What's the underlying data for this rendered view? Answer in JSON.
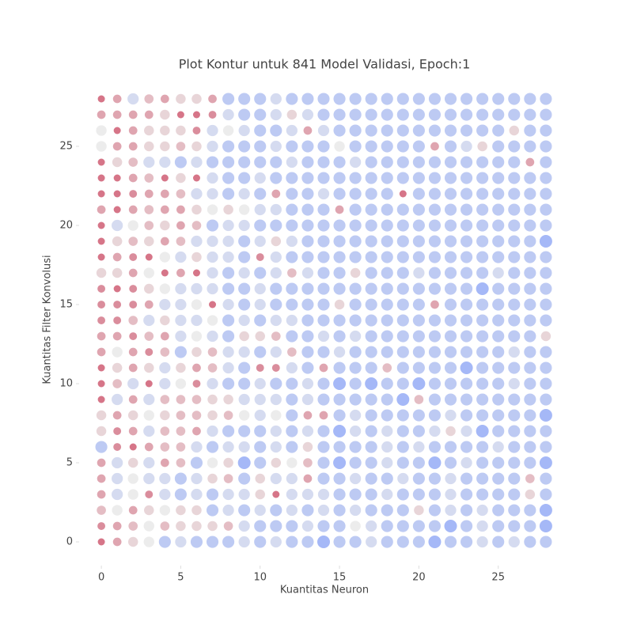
{
  "chart_data": {
    "type": "dot-grid",
    "title": "Plot Kontur untuk 841 Model Validasi, Epoch:1",
    "x_label": "Kuantitas Neuron",
    "y_label": "Kuantitas Filter Konvolusi",
    "x": [
      0,
      1,
      2,
      3,
      4,
      5,
      6,
      7,
      8,
      9,
      10,
      11,
      12,
      13,
      14,
      15,
      16,
      17,
      18,
      19,
      20,
      21,
      22,
      23,
      24,
      25,
      26,
      27,
      28
    ],
    "y": [
      0,
      1,
      2,
      3,
      4,
      5,
      6,
      7,
      8,
      9,
      10,
      11,
      12,
      13,
      14,
      15,
      16,
      17,
      18,
      19,
      20,
      21,
      22,
      23,
      24,
      25,
      26,
      27,
      28
    ],
    "xlim": [
      -1.4,
      29.5
    ],
    "ylim": [
      -1.5,
      29.5
    ],
    "xticks": [
      0,
      5,
      10,
      15,
      20,
      25
    ],
    "yticks": [
      0,
      5,
      10,
      15,
      20,
      25
    ],
    "color_stops": [
      {
        "value": 0,
        "color": "#b40426"
      },
      {
        "value": 5,
        "color": "#dddddd"
      },
      {
        "value": 8,
        "color": "#5b7ef0"
      }
    ],
    "opacity": 0.55,
    "values": [
      [
        0,
        2,
        4,
        5,
        7,
        6,
        7,
        7,
        7,
        6,
        7,
        6,
        7,
        7,
        8,
        7,
        7,
        6,
        7,
        7,
        7,
        8,
        7,
        7,
        6,
        7,
        6,
        7,
        7
      ],
      [
        1,
        2,
        3,
        5,
        3,
        4,
        4,
        4,
        3,
        6,
        7,
        7,
        7,
        6,
        7,
        7,
        5,
        6,
        7,
        7,
        7,
        7,
        8,
        7,
        6,
        7,
        7,
        7,
        8
      ],
      [
        3,
        5,
        2,
        4,
        5,
        4,
        4,
        7,
        6,
        7,
        6,
        7,
        6,
        7,
        6,
        7,
        6,
        7,
        7,
        7,
        4,
        7,
        6,
        7,
        6,
        7,
        7,
        7,
        8
      ],
      [
        2,
        6,
        5,
        1,
        6,
        7,
        6,
        7,
        6,
        6,
        4,
        0,
        6,
        6,
        6,
        7,
        7,
        7,
        6,
        7,
        7,
        7,
        6,
        7,
        7,
        7,
        7,
        4,
        7
      ],
      [
        2,
        6,
        5,
        6,
        6,
        7,
        6,
        4,
        3,
        7,
        4,
        6,
        6,
        2,
        7,
        7,
        6,
        7,
        7,
        6,
        7,
        7,
        6,
        7,
        7,
        7,
        7,
        3,
        7
      ],
      [
        2,
        6,
        4,
        6,
        2,
        3,
        7,
        5,
        4,
        8,
        7,
        4,
        5,
        3,
        7,
        8,
        7,
        7,
        6,
        7,
        7,
        8,
        7,
        6,
        7,
        7,
        7,
        7,
        8
      ],
      [
        7,
        1,
        0,
        2,
        3,
        3,
        6,
        7,
        6,
        6,
        7,
        6,
        7,
        4,
        7,
        7,
        7,
        7,
        6,
        7,
        6,
        7,
        7,
        7,
        7,
        6,
        7,
        7,
        7
      ],
      [
        4,
        1,
        2,
        6,
        3,
        3,
        2,
        6,
        7,
        7,
        7,
        6,
        7,
        6,
        7,
        8,
        6,
        7,
        6,
        7,
        7,
        6,
        4,
        6,
        8,
        7,
        7,
        7,
        7
      ],
      [
        4,
        2,
        4,
        5,
        4,
        3,
        3,
        4,
        3,
        5,
        6,
        5,
        7,
        2,
        2,
        7,
        6,
        7,
        7,
        7,
        7,
        7,
        6,
        7,
        7,
        7,
        7,
        7,
        8
      ],
      [
        0,
        6,
        2,
        6,
        3,
        3,
        3,
        4,
        4,
        6,
        6,
        6,
        7,
        6,
        7,
        7,
        7,
        7,
        7,
        8,
        3,
        7,
        7,
        7,
        7,
        7,
        7,
        7,
        7
      ],
      [
        0,
        3,
        6,
        0,
        6,
        5,
        1,
        6,
        7,
        7,
        6,
        7,
        7,
        6,
        7,
        8,
        7,
        8,
        7,
        7,
        8,
        7,
        7,
        7,
        7,
        7,
        6,
        7,
        7
      ],
      [
        0,
        4,
        2,
        4,
        6,
        4,
        2,
        3,
        6,
        7,
        1,
        1,
        6,
        7,
        2,
        7,
        7,
        7,
        3,
        7,
        7,
        7,
        7,
        8,
        7,
        7,
        7,
        7,
        7
      ],
      [
        2,
        5,
        2,
        1,
        3,
        7,
        4,
        3,
        6,
        6,
        7,
        6,
        3,
        7,
        7,
        6,
        7,
        7,
        7,
        7,
        7,
        7,
        7,
        7,
        7,
        7,
        6,
        7,
        7
      ],
      [
        2,
        2,
        1,
        3,
        2,
        6,
        5,
        6,
        7,
        4,
        4,
        3,
        7,
        7,
        6,
        7,
        6,
        7,
        7,
        7,
        7,
        7,
        7,
        7,
        7,
        7,
        7,
        7,
        4
      ],
      [
        1,
        1,
        3,
        6,
        4,
        6,
        6,
        5,
        7,
        6,
        7,
        6,
        6,
        7,
        7,
        7,
        7,
        7,
        7,
        7,
        7,
        7,
        7,
        7,
        7,
        7,
        7,
        7,
        7
      ],
      [
        1,
        1,
        1,
        2,
        6,
        6,
        5,
        0,
        6,
        7,
        6,
        7,
        7,
        7,
        7,
        4,
        7,
        7,
        7,
        7,
        7,
        2,
        7,
        7,
        7,
        7,
        7,
        7,
        7
      ],
      [
        1,
        0,
        1,
        4,
        5,
        6,
        6,
        6,
        7,
        7,
        6,
        7,
        7,
        7,
        7,
        7,
        7,
        7,
        7,
        7,
        7,
        7,
        7,
        7,
        8,
        7,
        7,
        7,
        7
      ],
      [
        4,
        4,
        2,
        5,
        0,
        2,
        0,
        6,
        7,
        6,
        7,
        6,
        3,
        6,
        7,
        7,
        4,
        7,
        7,
        7,
        6,
        7,
        7,
        7,
        7,
        6,
        7,
        7,
        7
      ],
      [
        0,
        2,
        1,
        0,
        5,
        6,
        4,
        6,
        6,
        7,
        1,
        6,
        7,
        7,
        7,
        7,
        7,
        7,
        7,
        7,
        7,
        7,
        7,
        7,
        7,
        7,
        7,
        7,
        7
      ],
      [
        0,
        4,
        3,
        4,
        2,
        3,
        6,
        6,
        6,
        7,
        6,
        4,
        6,
        7,
        7,
        7,
        7,
        7,
        7,
        7,
        7,
        7,
        7,
        7,
        7,
        7,
        7,
        7,
        8
      ],
      [
        0,
        6,
        5,
        3,
        4,
        2,
        3,
        7,
        6,
        6,
        7,
        7,
        7,
        7,
        7,
        7,
        7,
        7,
        7,
        7,
        7,
        7,
        7,
        7,
        7,
        7,
        7,
        7,
        7
      ],
      [
        2,
        0,
        2,
        3,
        2,
        2,
        4,
        5,
        4,
        5,
        6,
        6,
        7,
        7,
        7,
        2,
        7,
        7,
        7,
        7,
        7,
        7,
        7,
        7,
        7,
        7,
        7,
        7,
        7
      ],
      [
        0,
        0,
        1,
        2,
        2,
        3,
        6,
        6,
        7,
        6,
        7,
        2,
        7,
        7,
        6,
        7,
        7,
        7,
        7,
        0,
        7,
        7,
        7,
        7,
        7,
        7,
        7,
        7,
        7
      ],
      [
        0,
        0,
        2,
        3,
        0,
        4,
        0,
        6,
        7,
        7,
        6,
        7,
        7,
        7,
        7,
        7,
        7,
        7,
        7,
        7,
        7,
        7,
        7,
        7,
        7,
        7,
        7,
        7,
        7
      ],
      [
        0,
        4,
        3,
        6,
        6,
        7,
        6,
        7,
        7,
        7,
        7,
        7,
        6,
        7,
        7,
        7,
        6,
        7,
        7,
        7,
        7,
        7,
        7,
        7,
        7,
        7,
        7,
        2,
        7
      ],
      [
        5,
        2,
        2,
        4,
        4,
        3,
        4,
        6,
        7,
        7,
        7,
        6,
        7,
        7,
        7,
        5,
        7,
        7,
        7,
        7,
        7,
        2,
        7,
        6,
        4,
        7,
        7,
        7,
        7
      ],
      [
        5,
        0,
        2,
        4,
        4,
        4,
        1,
        6,
        5,
        6,
        7,
        7,
        6,
        2,
        6,
        7,
        7,
        7,
        7,
        7,
        7,
        7,
        7,
        7,
        7,
        7,
        4,
        7,
        7
      ],
      [
        2,
        2,
        2,
        2,
        4,
        0,
        0,
        1,
        6,
        7,
        7,
        6,
        4,
        6,
        7,
        7,
        7,
        7,
        7,
        7,
        7,
        7,
        7,
        7,
        7,
        7,
        7,
        7,
        7
      ],
      [
        0,
        2,
        6,
        3,
        2,
        4,
        4,
        2,
        7,
        7,
        7,
        6,
        7,
        7,
        7,
        7,
        7,
        7,
        7,
        7,
        7,
        7,
        7,
        7,
        7,
        7,
        7,
        7,
        7
      ]
    ]
  }
}
